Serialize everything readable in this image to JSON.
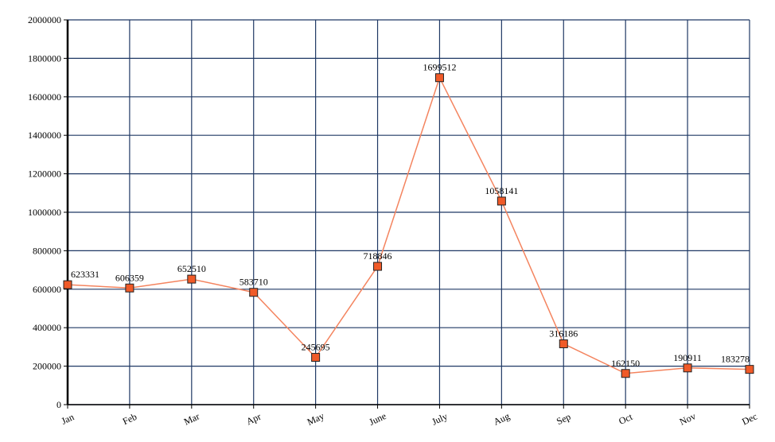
{
  "chart_data": {
    "type": "line",
    "categories": [
      "Jan",
      "Feb",
      "Mar",
      "Apr",
      "May",
      "June",
      "July",
      "Aug",
      "Sep",
      "Oct",
      "Nov",
      "Dec"
    ],
    "values": [
      623331,
      606359,
      652510,
      583710,
      245695,
      718846,
      1699512,
      1058141,
      316186,
      162150,
      190911,
      183278
    ],
    "color": "#f4845f",
    "marker_color": "#f05a28",
    "ylim": [
      0,
      2000000
    ],
    "yticks": [
      0,
      200000,
      400000,
      600000,
      800000,
      1000000,
      1200000,
      1400000,
      1600000,
      1800000,
      2000000
    ],
    "grid": true,
    "grid_color": "#1f3864"
  }
}
